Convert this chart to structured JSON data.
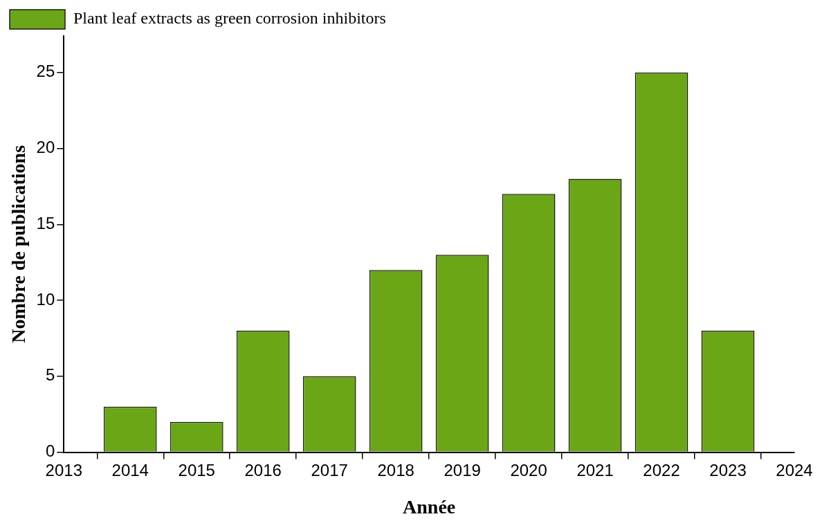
{
  "chart_data": {
    "type": "bar",
    "xlabel": "Année",
    "ylabel": "Nombre de publications",
    "x": [
      2014,
      2015,
      2016,
      2017,
      2018,
      2019,
      2020,
      2021,
      2022,
      2023
    ],
    "series": [
      {
        "name": "Plant leaf extracts as green corrosion inhibitors",
        "color": "#6aa616",
        "values": [
          3,
          2,
          8,
          5,
          12,
          13,
          17,
          18,
          25,
          8
        ]
      }
    ],
    "xlim": [
      2013,
      2024
    ],
    "xticks": [
      2013,
      2014,
      2015,
      2016,
      2017,
      2018,
      2019,
      2020,
      2021,
      2022,
      2023,
      2024
    ],
    "ylim": [
      0,
      27.4
    ],
    "yticks": [
      0,
      5,
      10,
      15,
      20,
      25
    ],
    "legend": "top left"
  }
}
